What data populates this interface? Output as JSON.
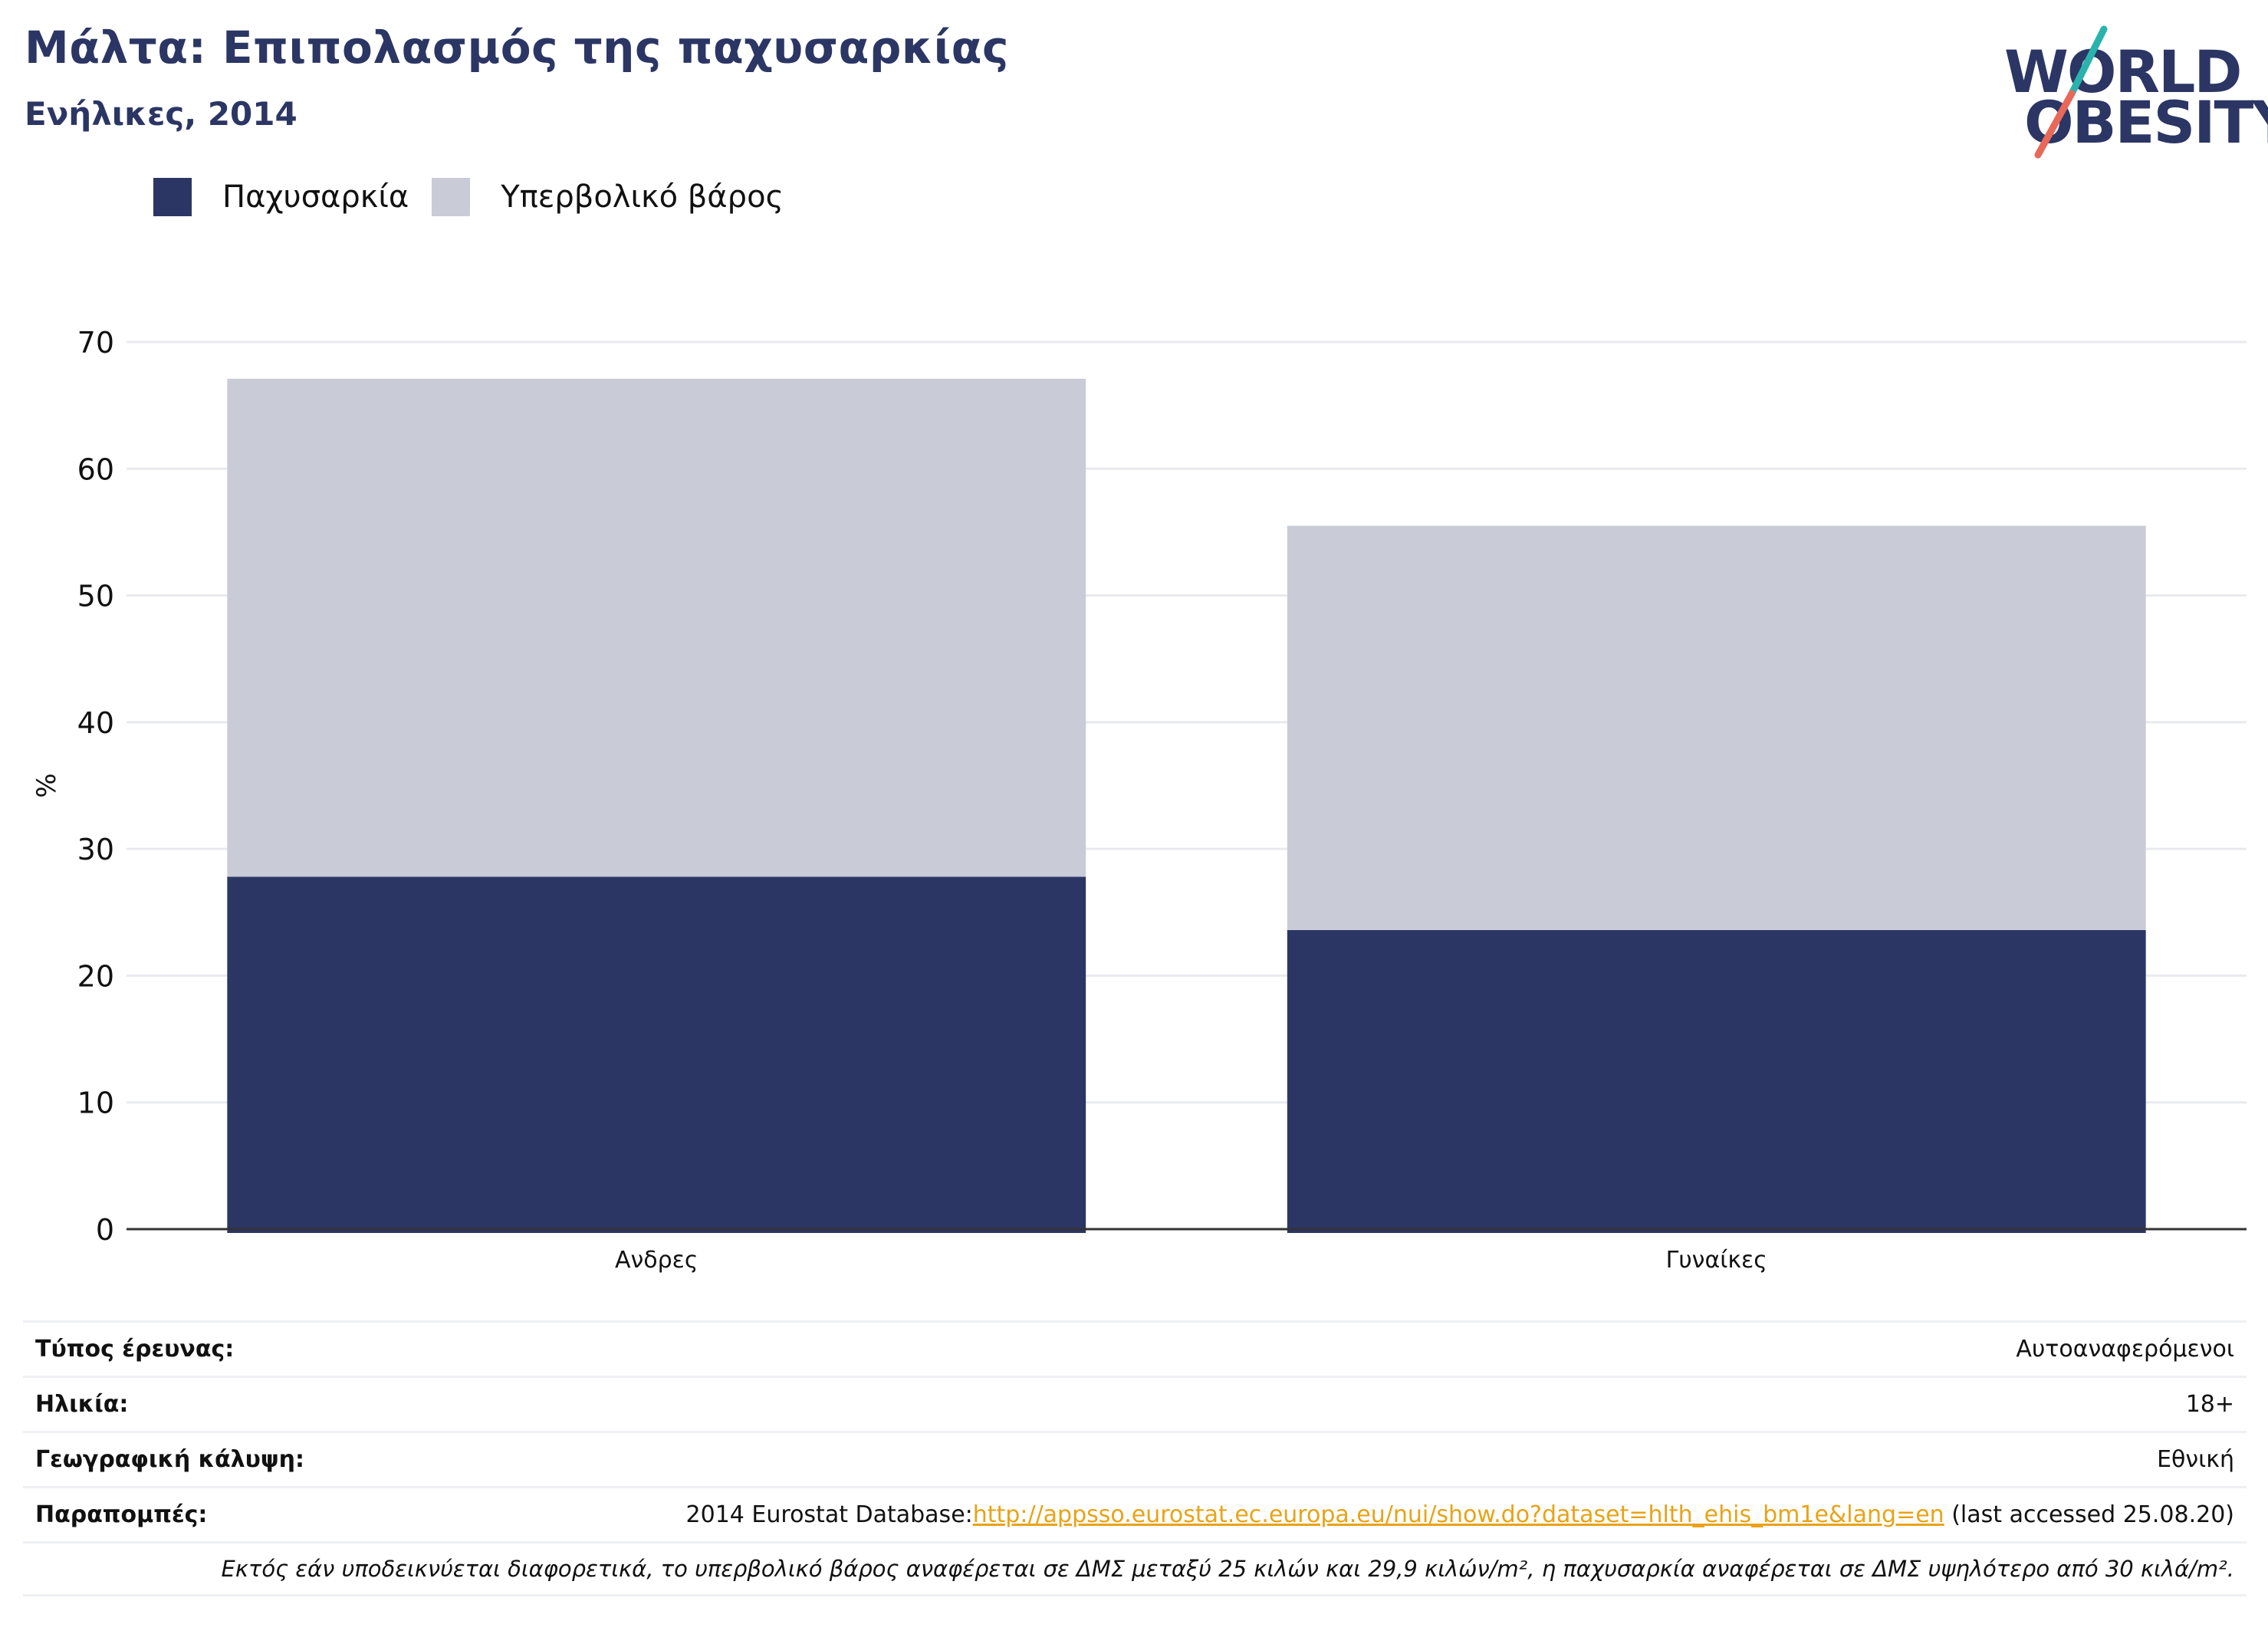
{
  "header": {
    "title": "Μάλτα: Επιπολασμός της παχυσαρκίας",
    "subtitle": "Ενήλικες, 2014"
  },
  "logo": {
    "line1": "WORLD",
    "line2": "OBESITY",
    "accent_teal": "#2ab3ad",
    "accent_coral": "#e8685a"
  },
  "colors": {
    "obesity": "#2b3664",
    "overweight": "#c9cbd7",
    "grid": "#e9eaef",
    "axis": "#333333"
  },
  "chart_data": {
    "type": "bar",
    "stacked": true,
    "categories": [
      "Ανδρες",
      "Γυναίκες"
    ],
    "series": [
      {
        "name": "Παχυσαρκία",
        "values": [
          27.8,
          23.6
        ],
        "color": "#2b3664"
      },
      {
        "name": "Υπερβολικό βάρος",
        "values": [
          39.3,
          31.9
        ],
        "color": "#c9cbd7"
      }
    ],
    "ylabel": "%",
    "xlabel": "",
    "ylim": [
      0,
      70
    ],
    "yticks": [
      0,
      10,
      20,
      30,
      40,
      50,
      60,
      70
    ],
    "grid": true,
    "legend_position": "top-left"
  },
  "meta": {
    "survey_type_label": "Τύπος έρευνας:",
    "survey_type_value": "Αυτοαναφερόμενοι",
    "age_label": "Ηλικία:",
    "age_value": "18+",
    "coverage_label": "Γεωγραφική κάλυψη:",
    "coverage_value": "Εθνική",
    "refs_label": "Παραπομπές:",
    "refs_prefix": "2014 Eurostat Database:",
    "refs_link": "http://appsso.eurostat.ec.europa.eu/nui/show.do?dataset=hlth_ehis_bm1e&lang=en",
    "refs_suffix": " (last accessed 25.08.20)",
    "note": "Εκτός εάν υποδεικνύεται διαφορετικά, το υπερβολικό βάρος αναφέρεται σε ΔΜΣ μεταξύ 25 κιλών και 29,9 κιλών/m², η παχυσαρκία αναφέρεται σε ΔΜΣ υψηλότερο από 30 κιλά/m²."
  }
}
